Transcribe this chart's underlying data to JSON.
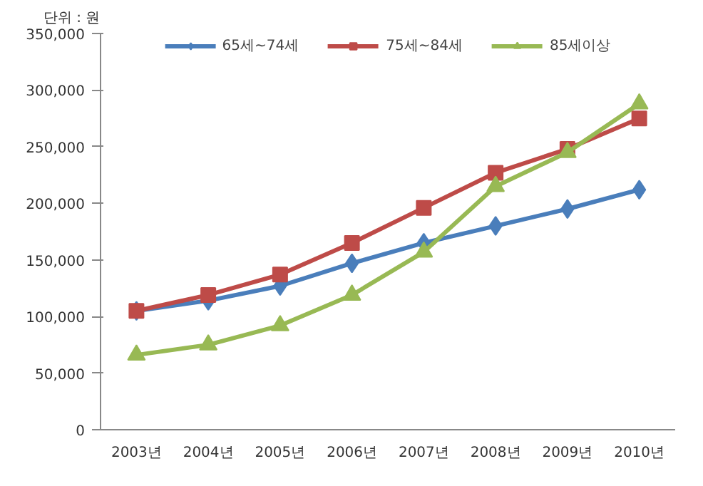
{
  "chart_data": {
    "type": "line",
    "categories": [
      "2003년",
      "2004년",
      "2005년",
      "2006년",
      "2007년",
      "2008년",
      "2009년",
      "2010년"
    ],
    "series": [
      {
        "name": "65세~74세",
        "color": "#4a7ebb",
        "marker": "diamond",
        "values": [
          105000,
          114000,
          127000,
          147000,
          165000,
          180000,
          195000,
          212000
        ]
      },
      {
        "name": "75세~84세",
        "color": "#be4b48",
        "marker": "square",
        "values": [
          105000,
          119000,
          137000,
          165000,
          196000,
          227000,
          248000,
          275000
        ]
      },
      {
        "name": "85세이상",
        "color": "#98b954",
        "marker": "triangle",
        "values": [
          66000,
          75000,
          92000,
          119000,
          157000,
          215000,
          245000,
          288000
        ]
      }
    ],
    "ylim": [
      0,
      350000
    ],
    "yticks": [
      {
        "value": 0,
        "label": "0"
      },
      {
        "value": 50000,
        "label": "50,000"
      },
      {
        "value": 100000,
        "label": "100,000"
      },
      {
        "value": 150000,
        "label": "150,000"
      },
      {
        "value": 200000,
        "label": "200,000"
      },
      {
        "value": 250000,
        "label": "250,000"
      },
      {
        "value": 300000,
        "label": "300,000"
      },
      {
        "value": 350000,
        "label": "350,000"
      }
    ],
    "annotations": [
      "단위 : 원"
    ],
    "legend": "top",
    "grid": false,
    "line_style": "solid"
  }
}
